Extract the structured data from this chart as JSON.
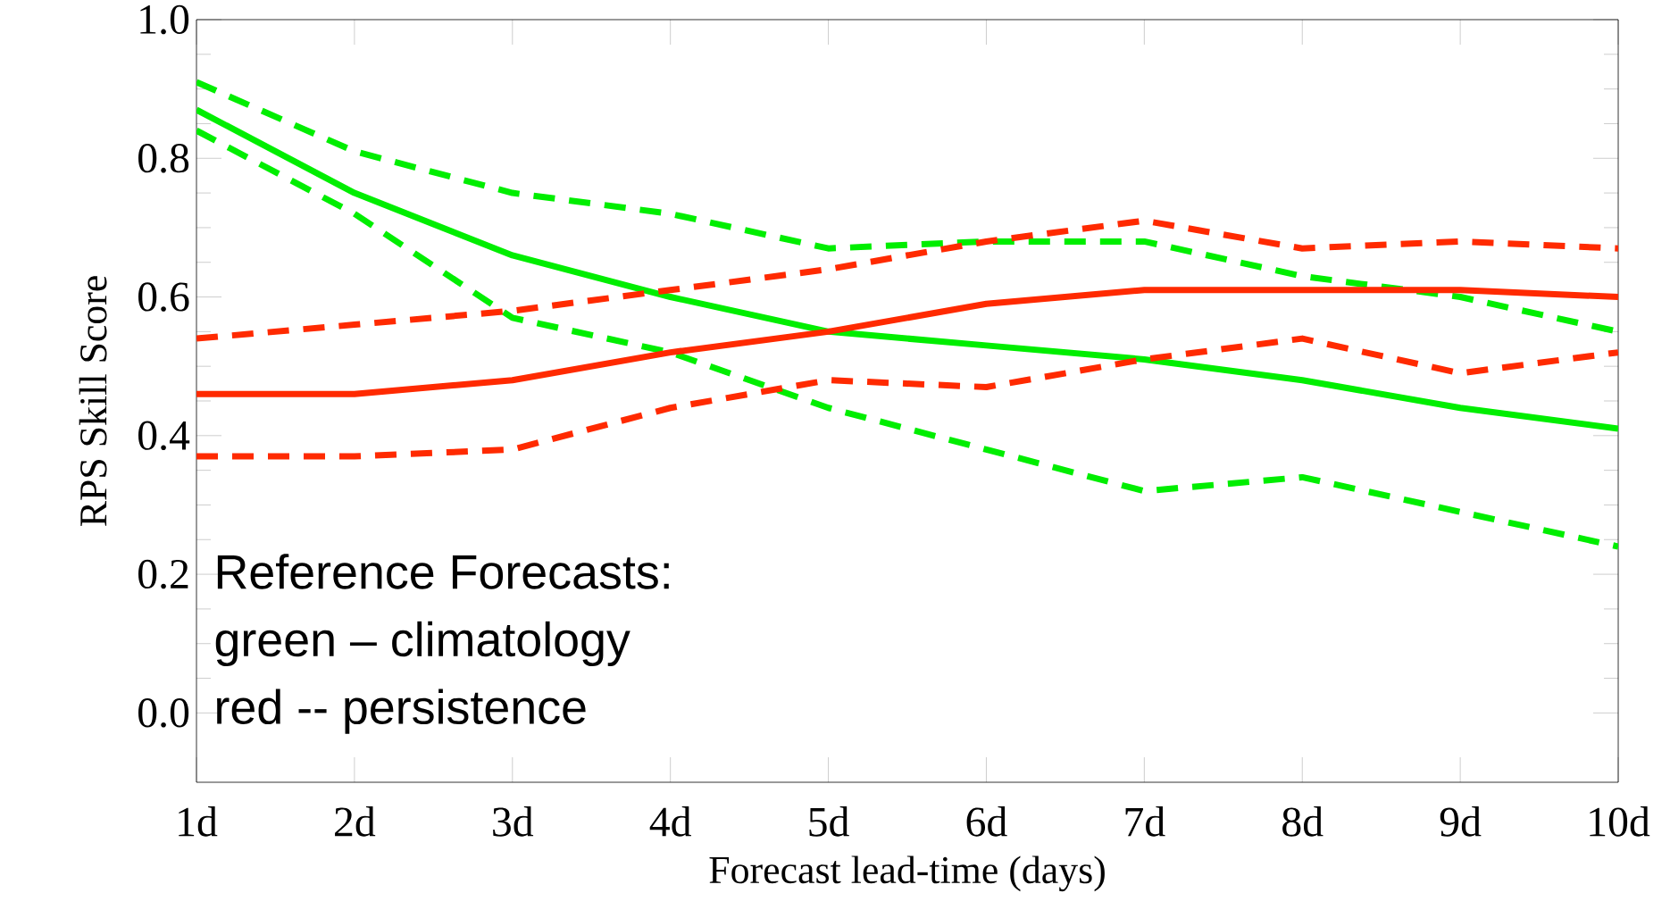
{
  "chart_data": {
    "type": "line",
    "xlabel": "Forecast lead-time (days)",
    "ylabel": "RPS Skill Score",
    "categories": [
      "1d",
      "2d",
      "3d",
      "4d",
      "5d",
      "6d",
      "7d",
      "8d",
      "9d",
      "10d"
    ],
    "series": [
      {
        "color": "#00ee00",
        "line_style": "solid",
        "values": [
          0.87,
          0.75,
          0.66,
          0.6,
          0.55,
          0.53,
          0.51,
          0.48,
          0.44,
          0.41
        ]
      },
      {
        "color": "#00ee00",
        "line_style": "dashed",
        "values": [
          0.91,
          0.81,
          0.75,
          0.72,
          0.67,
          0.68,
          0.68,
          0.63,
          0.6,
          0.55
        ]
      },
      {
        "color": "#00ee00",
        "line_style": "dashed",
        "values": [
          0.84,
          0.72,
          0.57,
          0.52,
          0.44,
          0.38,
          0.32,
          0.34,
          0.29,
          0.24
        ]
      },
      {
        "color": "#ff2a00",
        "line_style": "solid",
        "values": [
          0.46,
          0.46,
          0.48,
          0.52,
          0.55,
          0.59,
          0.61,
          0.61,
          0.61,
          0.6
        ]
      },
      {
        "color": "#ff2a00",
        "line_style": "dashed",
        "values": [
          0.54,
          0.56,
          0.58,
          0.61,
          0.64,
          0.68,
          0.71,
          0.67,
          0.68,
          0.67
        ]
      },
      {
        "color": "#ff2a00",
        "line_style": "dashed",
        "values": [
          0.37,
          0.37,
          0.38,
          0.44,
          0.48,
          0.47,
          0.51,
          0.54,
          0.49,
          0.52
        ]
      }
    ],
    "ylim": [
      -0.1,
      1.0
    ],
    "yticks": [
      {
        "value": 0,
        "label": "0.0"
      },
      {
        "value": 0.2,
        "label": "0.2"
      },
      {
        "value": 0.4,
        "label": "0.4"
      },
      {
        "value": 0.6,
        "label": "0.6"
      },
      {
        "value": 0.8,
        "label": "0.8"
      },
      {
        "value": 1.0,
        "label": "1.0"
      }
    ],
    "grid": false,
    "marker": "none",
    "annotations": [
      "Reference Forecasts:",
      "green – climatology",
      "red -- persistence"
    ]
  }
}
